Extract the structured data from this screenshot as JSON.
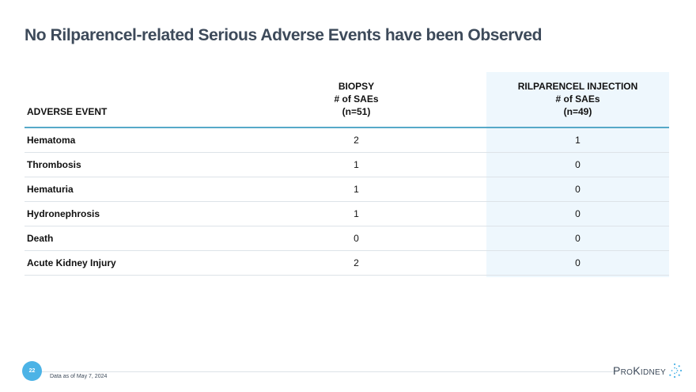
{
  "slide": {
    "title": "No Rilparencel-related Serious Adverse Events have been Observed",
    "page_number": "22",
    "footnote": "Data as of May 7, 2024",
    "logo_text": "ProKidney"
  },
  "table": {
    "headers": {
      "event": "ADVERSE EVENT",
      "biopsy": [
        "BIOPSY",
        "# of SAEs",
        "(n=51)"
      ],
      "rilparencel": [
        "RILPARENCEL INJECTION",
        "# of SAEs",
        "(n=49)"
      ]
    },
    "rows": [
      {
        "event": "Hematoma",
        "biopsy": "2",
        "rilparencel": "1"
      },
      {
        "event": "Thrombosis",
        "biopsy": "1",
        "rilparencel": "0"
      },
      {
        "event": "Hematuria",
        "biopsy": "1",
        "rilparencel": "0"
      },
      {
        "event": "Hydronephrosis",
        "biopsy": "1",
        "rilparencel": "0"
      },
      {
        "event": "Death",
        "biopsy": "0",
        "rilparencel": "0"
      },
      {
        "event": "Acute Kidney Injury",
        "biopsy": "2",
        "rilparencel": "0"
      }
    ]
  },
  "colors": {
    "title": "#3d4a5a",
    "highlight_column": "#eef7fd",
    "header_rule": "#56a9c8",
    "page_badge": "#4cb3e6",
    "logo_dots": "#4cb3e6"
  }
}
